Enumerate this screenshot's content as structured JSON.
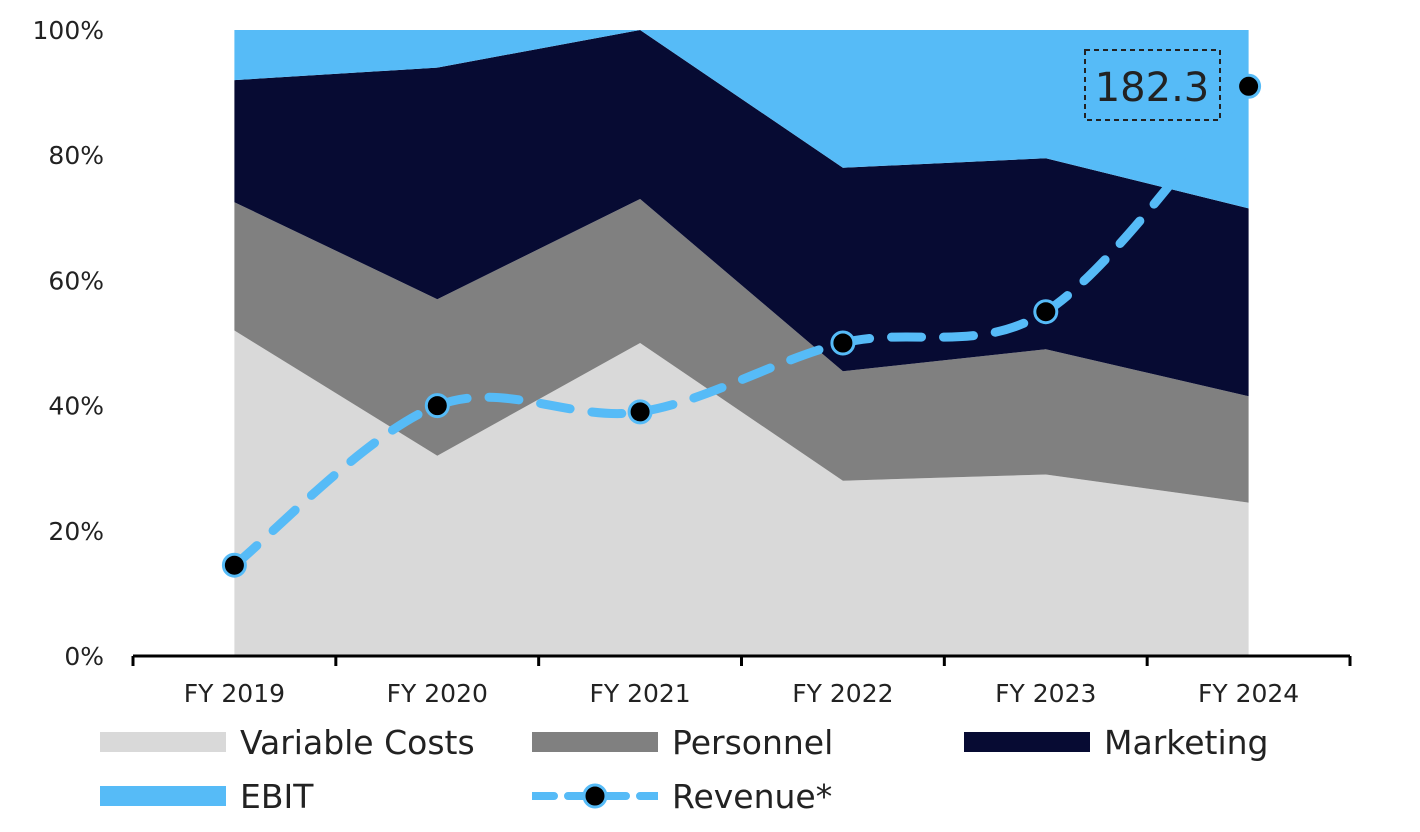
{
  "chart_data": {
    "type": "area",
    "stacked": true,
    "normalized": true,
    "categories": [
      "FY 2019",
      "FY 2020",
      "FY 2021",
      "FY 2022",
      "FY 2023",
      "FY 2024"
    ],
    "series": [
      {
        "name": "Variable Costs",
        "color": "#d9d9d9",
        "values": [
          52,
          32,
          50,
          28,
          29,
          24.5
        ]
      },
      {
        "name": "Personnel",
        "color": "#808080",
        "values": [
          20.5,
          25,
          23,
          17.5,
          20,
          17
        ]
      },
      {
        "name": "Marketing",
        "color": "#070b33",
        "values": [
          19.5,
          37,
          27,
          32.5,
          30.5,
          30
        ]
      },
      {
        "name": "EBIT",
        "color": "#56bbf7",
        "values": [
          8,
          6,
          0,
          22,
          20.5,
          28.5
        ]
      }
    ],
    "line_series": {
      "name": "Revenue*",
      "color": "#56bbf7",
      "marker_color": "#000000",
      "values": [
        14.5,
        40,
        39,
        50,
        55,
        91
      ]
    },
    "annotation": {
      "text": "182.3",
      "category": "FY 2024"
    },
    "ylim": [
      0,
      100
    ],
    "yticks": [
      "0%",
      "20%",
      "40%",
      "60%",
      "80%",
      "100%"
    ],
    "xlabel": "",
    "ylabel": "",
    "legend": "bottom"
  }
}
